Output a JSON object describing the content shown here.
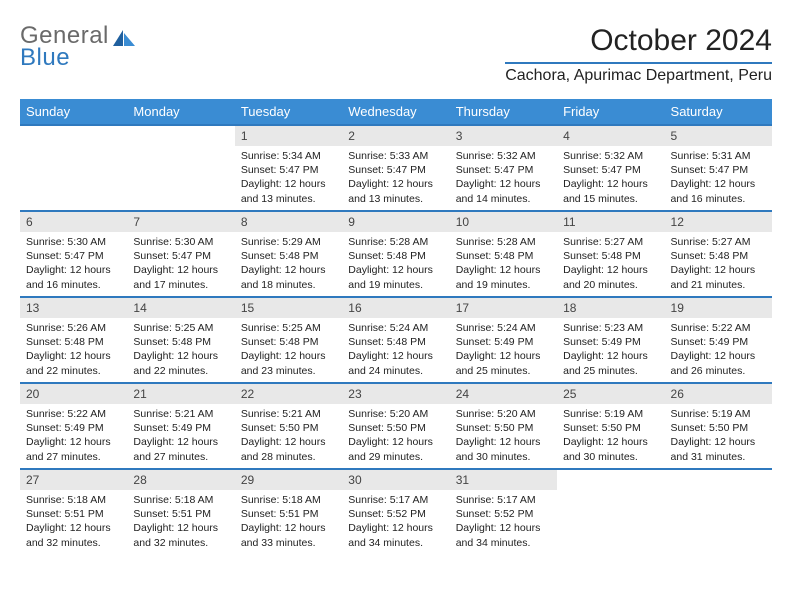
{
  "logo": {
    "word1": "General",
    "word2": "Blue"
  },
  "title": "October 2024",
  "location": "Cachora, Apurimac Department, Peru",
  "colors": {
    "header_bg": "#3a8cd3",
    "accent": "#2f79be",
    "daynum_bg": "#e8e8e8",
    "logo_gray": "#6a6a6a",
    "logo_blue": "#2f79be",
    "text": "#222222",
    "background": "#ffffff"
  },
  "typography": {
    "title_fontsize": 30,
    "location_fontsize": 16,
    "header_fontsize": 13,
    "daynum_fontsize": 12,
    "body_fontsize": 10.5,
    "font_family": "Arial"
  },
  "layout": {
    "columns": 7,
    "rows": 5,
    "first_weekday": "Sunday"
  },
  "weekdays": [
    "Sunday",
    "Monday",
    "Tuesday",
    "Wednesday",
    "Thursday",
    "Friday",
    "Saturday"
  ],
  "weeks": [
    [
      null,
      null,
      {
        "day": 1,
        "sunrise": "5:34 AM",
        "sunset": "5:47 PM",
        "daylight": "12 hours and 13 minutes."
      },
      {
        "day": 2,
        "sunrise": "5:33 AM",
        "sunset": "5:47 PM",
        "daylight": "12 hours and 13 minutes."
      },
      {
        "day": 3,
        "sunrise": "5:32 AM",
        "sunset": "5:47 PM",
        "daylight": "12 hours and 14 minutes."
      },
      {
        "day": 4,
        "sunrise": "5:32 AM",
        "sunset": "5:47 PM",
        "daylight": "12 hours and 15 minutes."
      },
      {
        "day": 5,
        "sunrise": "5:31 AM",
        "sunset": "5:47 PM",
        "daylight": "12 hours and 16 minutes."
      }
    ],
    [
      {
        "day": 6,
        "sunrise": "5:30 AM",
        "sunset": "5:47 PM",
        "daylight": "12 hours and 16 minutes."
      },
      {
        "day": 7,
        "sunrise": "5:30 AM",
        "sunset": "5:47 PM",
        "daylight": "12 hours and 17 minutes."
      },
      {
        "day": 8,
        "sunrise": "5:29 AM",
        "sunset": "5:48 PM",
        "daylight": "12 hours and 18 minutes."
      },
      {
        "day": 9,
        "sunrise": "5:28 AM",
        "sunset": "5:48 PM",
        "daylight": "12 hours and 19 minutes."
      },
      {
        "day": 10,
        "sunrise": "5:28 AM",
        "sunset": "5:48 PM",
        "daylight": "12 hours and 19 minutes."
      },
      {
        "day": 11,
        "sunrise": "5:27 AM",
        "sunset": "5:48 PM",
        "daylight": "12 hours and 20 minutes."
      },
      {
        "day": 12,
        "sunrise": "5:27 AM",
        "sunset": "5:48 PM",
        "daylight": "12 hours and 21 minutes."
      }
    ],
    [
      {
        "day": 13,
        "sunrise": "5:26 AM",
        "sunset": "5:48 PM",
        "daylight": "12 hours and 22 minutes."
      },
      {
        "day": 14,
        "sunrise": "5:25 AM",
        "sunset": "5:48 PM",
        "daylight": "12 hours and 22 minutes."
      },
      {
        "day": 15,
        "sunrise": "5:25 AM",
        "sunset": "5:48 PM",
        "daylight": "12 hours and 23 minutes."
      },
      {
        "day": 16,
        "sunrise": "5:24 AM",
        "sunset": "5:48 PM",
        "daylight": "12 hours and 24 minutes."
      },
      {
        "day": 17,
        "sunrise": "5:24 AM",
        "sunset": "5:49 PM",
        "daylight": "12 hours and 25 minutes."
      },
      {
        "day": 18,
        "sunrise": "5:23 AM",
        "sunset": "5:49 PM",
        "daylight": "12 hours and 25 minutes."
      },
      {
        "day": 19,
        "sunrise": "5:22 AM",
        "sunset": "5:49 PM",
        "daylight": "12 hours and 26 minutes."
      }
    ],
    [
      {
        "day": 20,
        "sunrise": "5:22 AM",
        "sunset": "5:49 PM",
        "daylight": "12 hours and 27 minutes."
      },
      {
        "day": 21,
        "sunrise": "5:21 AM",
        "sunset": "5:49 PM",
        "daylight": "12 hours and 27 minutes."
      },
      {
        "day": 22,
        "sunrise": "5:21 AM",
        "sunset": "5:50 PM",
        "daylight": "12 hours and 28 minutes."
      },
      {
        "day": 23,
        "sunrise": "5:20 AM",
        "sunset": "5:50 PM",
        "daylight": "12 hours and 29 minutes."
      },
      {
        "day": 24,
        "sunrise": "5:20 AM",
        "sunset": "5:50 PM",
        "daylight": "12 hours and 30 minutes."
      },
      {
        "day": 25,
        "sunrise": "5:19 AM",
        "sunset": "5:50 PM",
        "daylight": "12 hours and 30 minutes."
      },
      {
        "day": 26,
        "sunrise": "5:19 AM",
        "sunset": "5:50 PM",
        "daylight": "12 hours and 31 minutes."
      }
    ],
    [
      {
        "day": 27,
        "sunrise": "5:18 AM",
        "sunset": "5:51 PM",
        "daylight": "12 hours and 32 minutes."
      },
      {
        "day": 28,
        "sunrise": "5:18 AM",
        "sunset": "5:51 PM",
        "daylight": "12 hours and 32 minutes."
      },
      {
        "day": 29,
        "sunrise": "5:18 AM",
        "sunset": "5:51 PM",
        "daylight": "12 hours and 33 minutes."
      },
      {
        "day": 30,
        "sunrise": "5:17 AM",
        "sunset": "5:52 PM",
        "daylight": "12 hours and 34 minutes."
      },
      {
        "day": 31,
        "sunrise": "5:17 AM",
        "sunset": "5:52 PM",
        "daylight": "12 hours and 34 minutes."
      },
      null,
      null
    ]
  ],
  "labels": {
    "sunrise": "Sunrise:",
    "sunset": "Sunset:",
    "daylight": "Daylight:"
  }
}
